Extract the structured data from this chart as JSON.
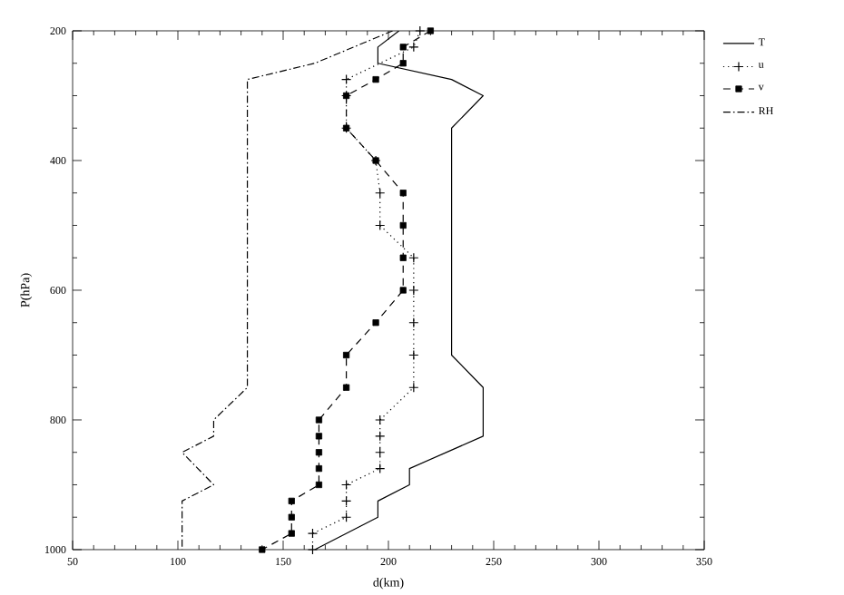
{
  "chart_data": {
    "type": "line",
    "xlabel": "d(km)",
    "ylabel": "P(hPa)",
    "xlim": [
      50,
      350
    ],
    "xticks": [
      50,
      100,
      150,
      200,
      250,
      300,
      350
    ],
    "ylim": [
      1000,
      200
    ],
    "yticks": [
      200,
      400,
      600,
      800,
      1000
    ],
    "grid": false,
    "legend": "right",
    "series": [
      {
        "name": "T",
        "color": "#000000",
        "line_style": "solid",
        "marker": "none",
        "x": [
          205,
          195,
          195,
          230,
          245,
          230,
          230,
          245,
          245,
          210,
          210,
          195,
          195,
          165
        ],
        "values": [
          200,
          225,
          250,
          275,
          300,
          350,
          700,
          750,
          825,
          875,
          900,
          925,
          950,
          1000
        ]
      },
      {
        "name": "u",
        "color": "#000000",
        "line_style": "dotted",
        "marker": "cross",
        "x": [
          215,
          212,
          180,
          180,
          180,
          194,
          196,
          196,
          212,
          212,
          212,
          212,
          212,
          196,
          196,
          196,
          196,
          180,
          180,
          180,
          164,
          164
        ],
        "values": [
          200,
          225,
          275,
          300,
          350,
          400,
          450,
          500,
          550,
          600,
          650,
          700,
          750,
          800,
          825,
          850,
          875,
          900,
          925,
          950,
          975,
          1000
        ]
      },
      {
        "name": "v",
        "color": "#000000",
        "line_style": "dashed",
        "marker": "square",
        "x": [
          220,
          207,
          207,
          194,
          180,
          180,
          194,
          207,
          207,
          207,
          207,
          194,
          180,
          180,
          167,
          167,
          167,
          167,
          167,
          154,
          154,
          154,
          140
        ],
        "values": [
          200,
          225,
          250,
          275,
          300,
          350,
          400,
          450,
          500,
          550,
          600,
          650,
          700,
          750,
          800,
          825,
          850,
          875,
          900,
          925,
          950,
          975,
          1000
        ]
      },
      {
        "name": "RH",
        "color": "#000000",
        "line_style": "dashdot",
        "marker": "none",
        "x": [
          202,
          165,
          133,
          133,
          117,
          117,
          102,
          117,
          102,
          102
        ],
        "values": [
          200,
          250,
          275,
          750,
          800,
          825,
          850,
          900,
          925,
          1000
        ]
      }
    ]
  }
}
